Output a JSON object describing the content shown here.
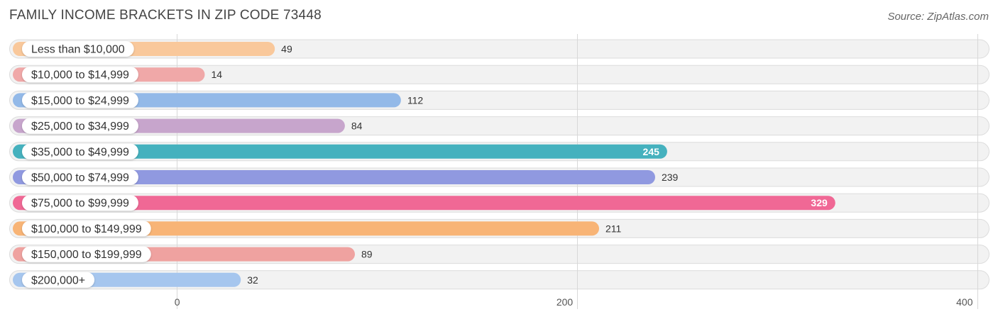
{
  "title": "FAMILY INCOME BRACKETS IN ZIP CODE 73448",
  "source": "Source: ZipAtlas.com",
  "chart_data": {
    "type": "bar",
    "orientation": "horizontal",
    "title": "FAMILY INCOME BRACKETS IN ZIP CODE 73448",
    "categories": [
      "Less than $10,000",
      "$10,000 to $14,999",
      "$15,000 to $24,999",
      "$25,000 to $34,999",
      "$35,000 to $49,999",
      "$50,000 to $74,999",
      "$75,000 to $99,999",
      "$100,000 to $149,999",
      "$150,000 to $199,999",
      "$200,000+"
    ],
    "values": [
      49,
      14,
      112,
      84,
      245,
      239,
      329,
      211,
      89,
      32
    ],
    "colors": [
      "#f9c89b",
      "#f0a8a8",
      "#93b9e8",
      "#c7a5cc",
      "#45b1be",
      "#9099e0",
      "#f06895",
      "#f8b476",
      "#efa2a0",
      "#a6c6ee"
    ],
    "value_label_inside": [
      false,
      false,
      false,
      false,
      true,
      false,
      true,
      false,
      false,
      false
    ],
    "xlim": [
      0,
      400
    ],
    "xticks": [
      0,
      200,
      400
    ],
    "xtick_labels": [
      "0",
      "200",
      "400"
    ],
    "grid": true,
    "xlabel": "",
    "ylabel": ""
  }
}
